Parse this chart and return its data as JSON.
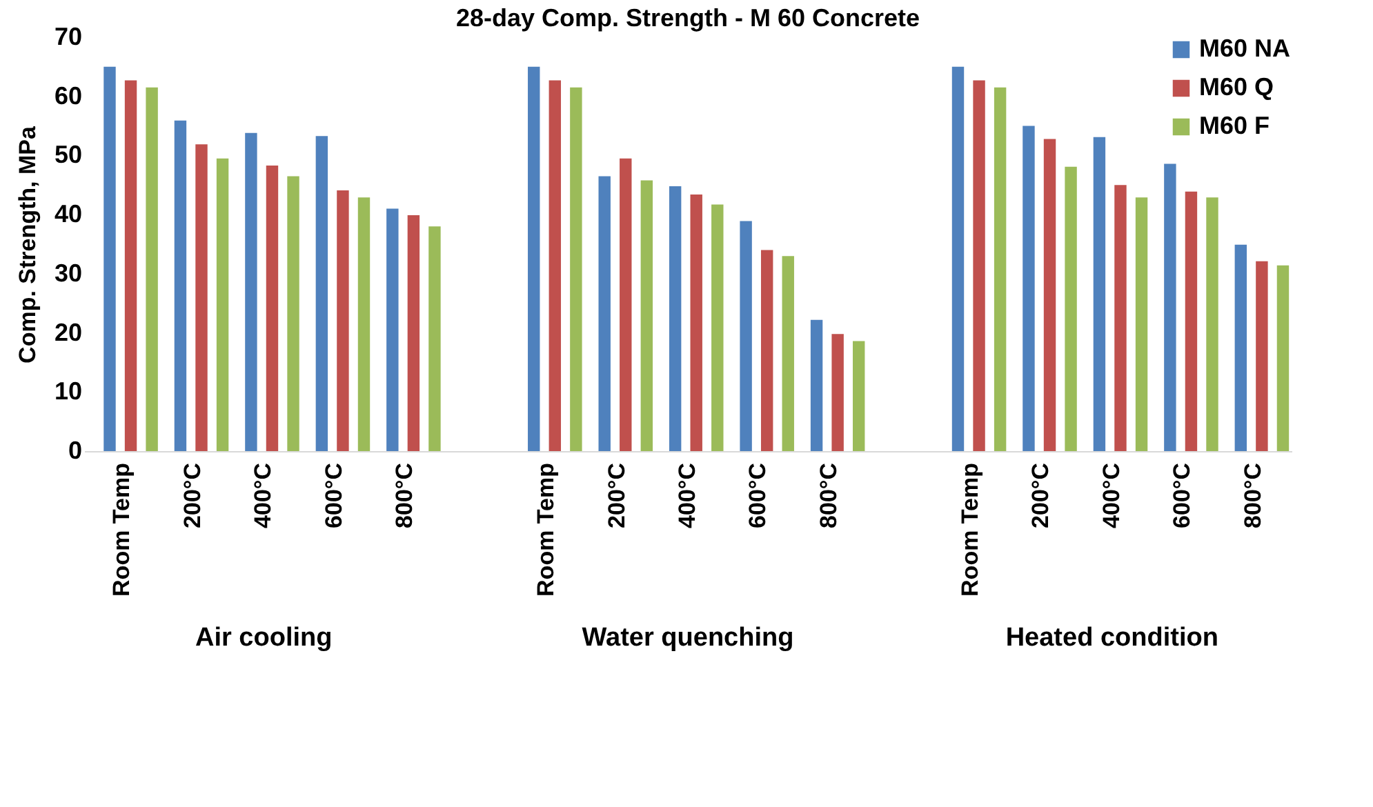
{
  "chart_data": {
    "type": "bar",
    "title": "28-day Comp. Strength - M 60 Concrete",
    "ylabel": "Comp. Strength, MPa",
    "categories": [
      "Room Temp",
      "200°C",
      "400°C",
      "600°C",
      "800°C",
      null,
      "Room Temp",
      "200°C",
      "400°C",
      "600°C",
      "800°C",
      null,
      "Room Temp",
      "200°C",
      "400°C",
      "600°C",
      "800°C"
    ],
    "series": [
      {
        "name": "M60 NA",
        "color": "#4f81bd",
        "values": [
          65,
          55.9,
          53.8,
          53.3,
          41.0,
          null,
          65,
          46.5,
          44.8,
          38.9,
          22.2,
          null,
          65,
          55.0,
          53.1,
          48.6,
          34.9
        ]
      },
      {
        "name": "M60 Q",
        "color": "#c0504d",
        "values": [
          62.7,
          51.9,
          48.3,
          44.1,
          39.9,
          null,
          62.7,
          49.5,
          43.4,
          34.0,
          19.8,
          null,
          62.7,
          52.8,
          45.0,
          43.9,
          32.1
        ]
      },
      {
        "name": "M60 F",
        "color": "#9bbb59",
        "values": [
          61.5,
          49.5,
          46.5,
          42.9,
          38.0,
          null,
          61.5,
          45.8,
          41.7,
          33.0,
          18.6,
          null,
          61.5,
          48.1,
          42.9,
          42.9,
          31.4
        ]
      }
    ],
    "annotations": [
      "Air cooling",
      "Water quenching",
      "Heated condition"
    ],
    "ylim": [
      0,
      70
    ],
    "yticks": [
      0,
      10,
      20,
      30,
      40,
      50,
      60,
      70
    ],
    "grid": false,
    "legend": "top right"
  }
}
